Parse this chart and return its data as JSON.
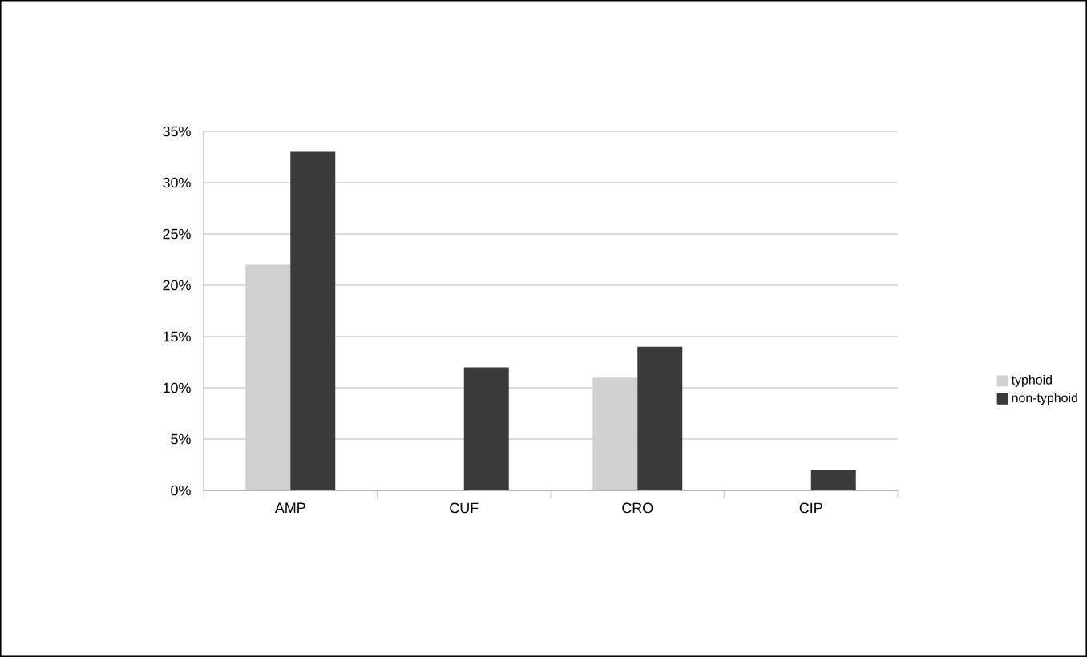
{
  "chart_data": {
    "type": "bar",
    "categories": [
      "AMP",
      "CUF",
      "CRO",
      "CIP"
    ],
    "series": [
      {
        "name": "typhoid",
        "color": "#d0d0d0",
        "values": [
          22,
          0,
          11,
          0
        ]
      },
      {
        "name": "non-typhoid",
        "color": "#3a3a3a",
        "values": [
          33,
          12,
          14,
          2
        ]
      }
    ],
    "ylim": [
      0,
      35
    ],
    "yticks": [
      {
        "value": 0,
        "label": "0%"
      },
      {
        "value": 5,
        "label": "5%"
      },
      {
        "value": 10,
        "label": "10%"
      },
      {
        "value": 15,
        "label": "15%"
      },
      {
        "value": 20,
        "label": "20%"
      },
      {
        "value": 25,
        "label": "25%"
      },
      {
        "value": 30,
        "label": "30%"
      },
      {
        "value": 35,
        "label": "35%"
      }
    ],
    "grid": "y",
    "legend": "right"
  }
}
